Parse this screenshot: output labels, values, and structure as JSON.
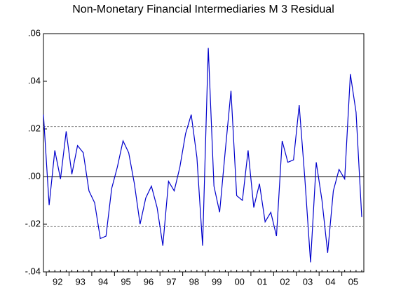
{
  "chart_data": {
    "type": "line",
    "title": "Non-Monetary Financial Intermediaries M 3 Residual",
    "categories": [
      null,
      null,
      "92",
      null,
      null,
      null,
      "93",
      null,
      null,
      null,
      "94",
      null,
      null,
      null,
      "95",
      null,
      null,
      null,
      "96",
      null,
      null,
      null,
      "97",
      null,
      null,
      null,
      "98",
      null,
      null,
      null,
      "99",
      null,
      null,
      null,
      "00",
      null,
      null,
      null,
      "01",
      null,
      null,
      null,
      "02",
      null,
      null,
      null,
      "03",
      null,
      null,
      null,
      "04",
      null,
      null,
      null,
      "05",
      null,
      null
    ],
    "series": [
      {
        "color": "#0000cc",
        "values": [
          0.026,
          -0.012,
          0.011,
          -0.001,
          0.019,
          0.001,
          0.013,
          0.01,
          -0.006,
          -0.011,
          -0.026,
          -0.025,
          -0.005,
          0.004,
          0.015,
          0.01,
          -0.003,
          -0.02,
          -0.009,
          -0.004,
          -0.013,
          -0.029,
          -0.002,
          -0.006,
          0.004,
          0.018,
          0.026,
          0.008,
          -0.029,
          0.054,
          -0.004,
          -0.015,
          0.011,
          0.036,
          -0.008,
          -0.01,
          0.011,
          -0.013,
          -0.003,
          -0.019,
          -0.015,
          -0.025,
          0.015,
          0.006,
          0.007,
          0.03,
          -0.001,
          -0.036,
          0.006,
          -0.01,
          -0.032,
          -0.006,
          0.003,
          -0.001,
          0.043,
          0.027,
          -0.017
        ]
      }
    ],
    "ylim": [
      -0.04,
      0.06
    ],
    "yticks": [
      {
        "value": -0.04,
        "label": "-.04"
      },
      {
        "value": -0.02,
        "label": "-.02"
      },
      {
        "value": 0,
        "label": ".00"
      },
      {
        "value": 0.02,
        "label": ".02"
      },
      {
        "value": 0.04,
        "label": ".04"
      },
      {
        "value": 0.06,
        "label": ".06"
      }
    ],
    "hlines": [
      {
        "value": 0.021,
        "style": "dashed"
      },
      {
        "value": 0,
        "style": "solid"
      },
      {
        "value": -0.021,
        "style": "dashed"
      }
    ]
  }
}
